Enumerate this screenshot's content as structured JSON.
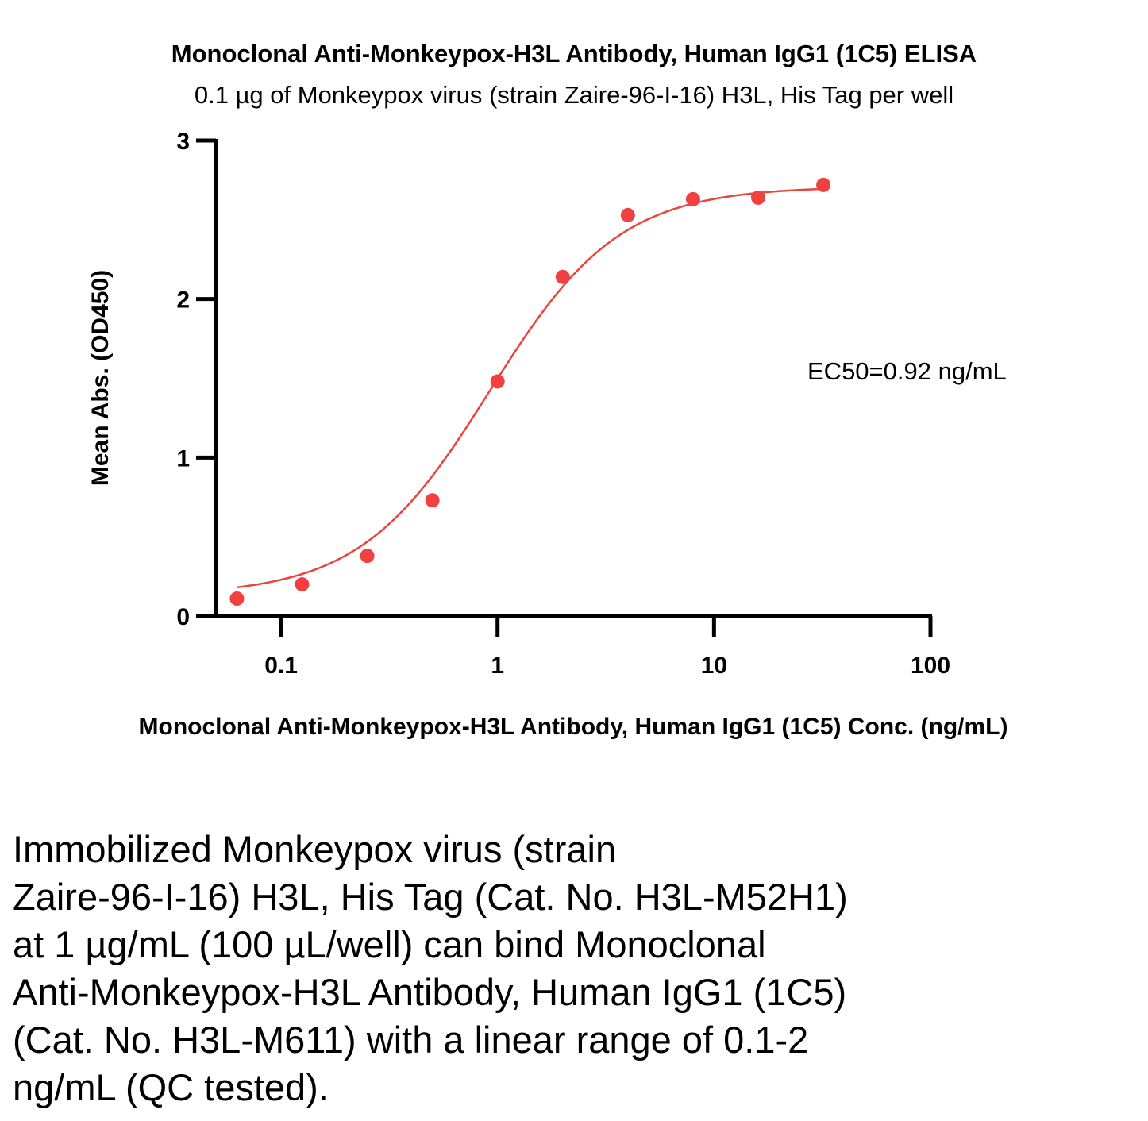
{
  "chart_data": {
    "type": "scatter",
    "title": "Monoclonal Anti-Monkeypox-H3L Antibody, Human IgG1 (1C5) ELISA",
    "subtitle": "0.1 µg of Monkeypox virus (strain Zaire-96-I-16) H3L, His Tag per well",
    "xlabel": "Monoclonal Anti-Monkeypox-H3L Antibody, Human IgG1 (1C5) Conc. (ng/mL)",
    "ylabel": "Mean Abs. (OD450)",
    "x_scale": "log",
    "xlim": [
      0.05,
      100
    ],
    "ylim": [
      0,
      3
    ],
    "x_ticks": [
      0.1,
      1,
      10,
      100
    ],
    "x_tick_labels": [
      "0.1",
      "1",
      "10",
      "100"
    ],
    "y_ticks": [
      0,
      1,
      2,
      3
    ],
    "y_tick_labels": [
      "0",
      "1",
      "2",
      "3"
    ],
    "grid": false,
    "series": [
      {
        "x": [
          0.0625,
          0.125,
          0.25,
          0.5,
          1,
          2,
          4,
          8,
          16,
          32
        ],
        "y": [
          0.11,
          0.2,
          0.38,
          0.73,
          1.48,
          2.14,
          2.53,
          2.63,
          2.64,
          2.72
        ],
        "color": "#f0403f"
      }
    ],
    "fit": {
      "type": "4PL",
      "bottom": 0.13,
      "top": 2.71,
      "ec50": 0.92,
      "hill": 1.45,
      "color": "#e8453c"
    },
    "annotations": [
      "EC50=0.92 ng/mL"
    ]
  },
  "caption": "Immobilized Monkeypox virus (strain\nZaire-96-I-16) H3L, His Tag (Cat. No. H3L-M52H1)\nat 1 µg/mL (100 µL/well) can bind Monoclonal\nAnti-Monkeypox-H3L Antibody, Human IgG1 (1C5)\n(Cat. No. H3L-M611) with a linear range of 0.1-2\nng/mL (QC tested)."
}
